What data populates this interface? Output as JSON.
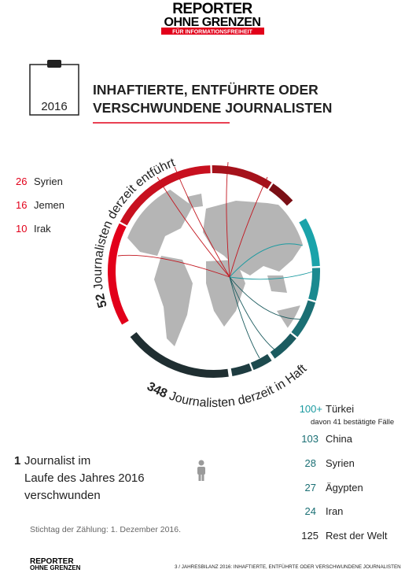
{
  "header": {
    "logo_line1": "REPORTER",
    "logo_line2": "OHNE GRENZEN",
    "logo_tagline": "FÜR INFORMATIONSFREIHEIT"
  },
  "year": "2016",
  "title": [
    "INHAFTIERTE, ENTFÜHRTE ODER",
    "VERSCHWUNDENE JOURNALISTEN"
  ],
  "kidnapped": {
    "count": "52",
    "label": "Journalisten derzeit entführt",
    "countries": [
      {
        "count": "26",
        "name": "Syrien"
      },
      {
        "count": "16",
        "name": "Jemen"
      },
      {
        "count": "10",
        "name": "Irak"
      }
    ]
  },
  "detained": {
    "count": "348",
    "label": "Journalisten derzeit in Haft",
    "countries": [
      {
        "count": "100+",
        "name": "Türkei",
        "note": "davon 41 bestätigte Fälle"
      },
      {
        "count": "103",
        "name": "China"
      },
      {
        "count": "28",
        "name": "Syrien"
      },
      {
        "count": "27",
        "name": "Ägypten"
      },
      {
        "count": "24",
        "name": "Iran"
      },
      {
        "count": "125",
        "name": "Rest der Welt"
      }
    ]
  },
  "missing": {
    "count": "1",
    "lines": [
      "Journalist im",
      "Laufe des Jahres 2016",
      "verschwunden"
    ]
  },
  "footnote": "Stichtag der Zählung: 1. Dezember 2016.",
  "footer": {
    "logo_line1": "REPORTER",
    "logo_line2": "OHNE GRENZEN",
    "page": "3 / JAHRESBILANZ 2016: INHAFTIERTE, ENTFÜHRTE ODER VERSCHWUNDENE JOURNALISTEN"
  }
}
